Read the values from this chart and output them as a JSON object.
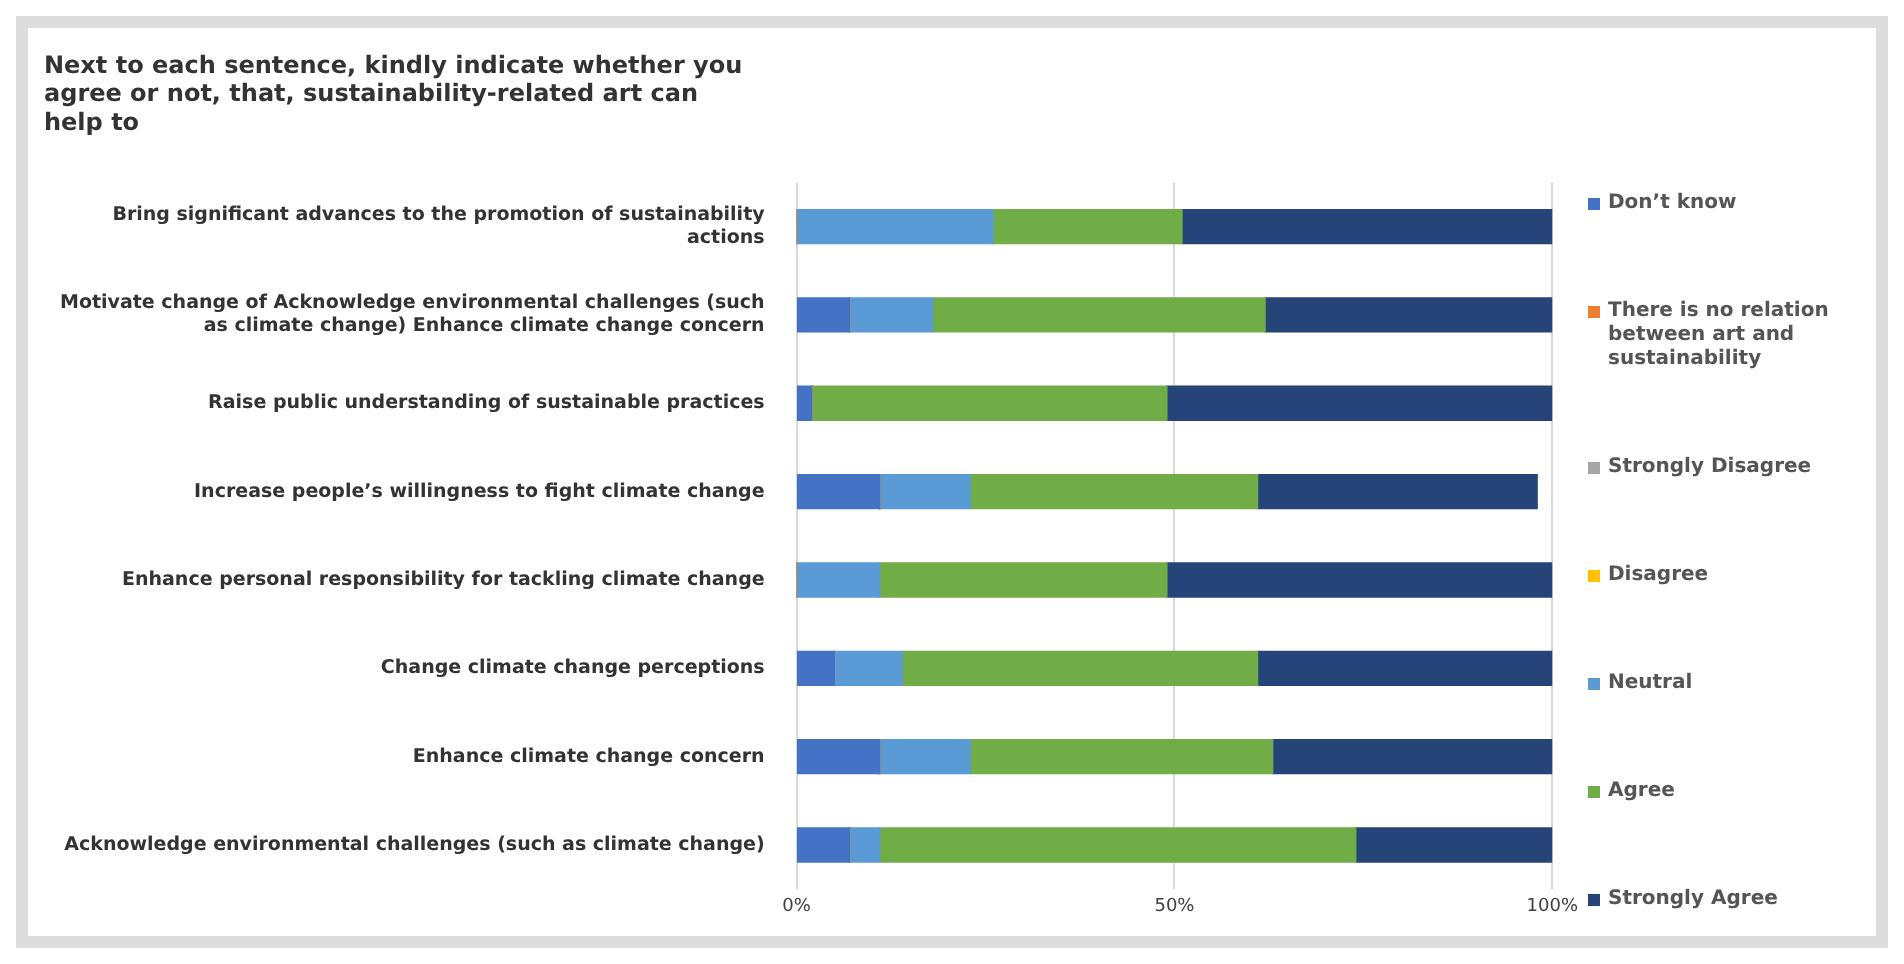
{
  "chart_data": {
    "type": "bar",
    "orientation": "horizontal",
    "stacked": true,
    "title": "Next to each sentence, kindly indicate whether you agree or not, that, sustainability-related art can help to",
    "categories": [
      "Bring significant advances to the promotion of sustainability actions",
      "Motivate change of Acknowledge environmental challenges (such as climate change) Enhance climate change concern",
      "Raise public understanding of sustainable practices",
      "Increase people’s willingness to fight climate change",
      "Enhance personal responsibility for tackling climate change",
      "Change climate change perceptions",
      "Enhance climate change concern",
      "Acknowledge environmental challenges (such as climate change)"
    ],
    "series": [
      {
        "name": "Don’t know",
        "color": "#4472c4",
        "values": [
          0,
          7,
          2,
          11,
          0,
          5,
          11,
          7
        ]
      },
      {
        "name": "There is no relation between art and sustainability",
        "color": "#ed7d31",
        "values": [
          0,
          0,
          0,
          0,
          0,
          0,
          0,
          0
        ]
      },
      {
        "name": "Strongly Disagree",
        "color": "#a5a5a5",
        "values": [
          0,
          0,
          0,
          0,
          0,
          0,
          0,
          0
        ]
      },
      {
        "name": "Disagree",
        "color": "#ffc000",
        "values": [
          0,
          0,
          0,
          0,
          0,
          0,
          0,
          0
        ]
      },
      {
        "name": "Neutral",
        "color": "#5b9bd5",
        "values": [
          26,
          11,
          0,
          12,
          11,
          9,
          12,
          4
        ]
      },
      {
        "name": "Agree",
        "color": "#70ad47",
        "values": [
          25,
          44,
          47,
          38,
          38,
          47,
          40,
          63
        ]
      },
      {
        "name": "Strongly Agree",
        "color": "#264478",
        "values": [
          49,
          38,
          51,
          37,
          51,
          39,
          37,
          26
        ]
      }
    ],
    "xlim": [
      0,
      100
    ],
    "xticks": [
      {
        "value": 0,
        "label": "0%"
      },
      {
        "value": 50,
        "label": "50%"
      },
      {
        "value": 100,
        "label": "100%"
      }
    ],
    "grid": "x",
    "legend": "right"
  }
}
